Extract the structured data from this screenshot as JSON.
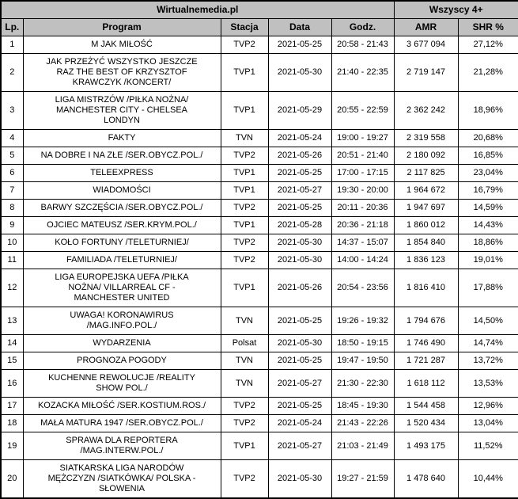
{
  "colors": {
    "header_bg": "#c0c0c0",
    "border": "#000000",
    "text": "#000000",
    "row_bg": "#ffffff"
  },
  "chart_data": {
    "type": "table",
    "title": "Wirtualnemedia.pl",
    "audience_group": "Wszyscy 4+",
    "columns": [
      "Lp.",
      "Program",
      "Stacja",
      "Data",
      "Godz.",
      "AMR",
      "SHR %"
    ],
    "rows": [
      [
        "1",
        "M JAK MIŁOŚĆ",
        "TVP2",
        "2021-05-25",
        "20:58 - 21:43",
        "3 677 094",
        "27,12%"
      ],
      [
        "2",
        "JAK PRZEŻYĆ WSZYSTKO JESZCZE\nRAZ THE BEST OF KRZYSZTOF\nKRAWCZYK /KONCERT/",
        "TVP1",
        "2021-05-30",
        "21:40 - 22:35",
        "2 719 147",
        "21,28%"
      ],
      [
        "3",
        "LIGA MISTRZÓW /PIŁKA NOŻNA/\nMANCHESTER CITY - CHELSEA\nLONDYN",
        "TVP1",
        "2021-05-29",
        "20:55 - 22:59",
        "2 362 242",
        "18,96%"
      ],
      [
        "4",
        "FAKTY",
        "TVN",
        "2021-05-24",
        "19:00 - 19:27",
        "2 319 558",
        "20,68%"
      ],
      [
        "5",
        "NA DOBRE I NA ZŁE /SER.OBYCZ.POL./",
        "TVP2",
        "2021-05-26",
        "20:51 - 21:40",
        "2 180 092",
        "16,85%"
      ],
      [
        "6",
        "TELEEXPRESS",
        "TVP1",
        "2021-05-25",
        "17:00 - 17:15",
        "2 117 825",
        "23,04%"
      ],
      [
        "7",
        "WIADOMOŚCI",
        "TVP1",
        "2021-05-27",
        "19:30 - 20:00",
        "1 964 672",
        "16,79%"
      ],
      [
        "8",
        "BARWY SZCZĘŚCIA /SER.OBYCZ.POL./",
        "TVP2",
        "2021-05-25",
        "20:11 - 20:36",
        "1 947 697",
        "14,59%"
      ],
      [
        "9",
        "OJCIEC MATEUSZ /SER.KRYM.POL./",
        "TVP1",
        "2021-05-28",
        "20:36 - 21:18",
        "1 860 012",
        "14,43%"
      ],
      [
        "10",
        "KOŁO FORTUNY /TELETURNIEJ/",
        "TVP2",
        "2021-05-30",
        "14:37 - 15:07",
        "1 854 840",
        "18,86%"
      ],
      [
        "11",
        "FAMILIADA /TELETURNIEJ/",
        "TVP2",
        "2021-05-30",
        "14:00 - 14:24",
        "1 836 123",
        "19,01%"
      ],
      [
        "12",
        "LIGA EUROPEJSKA UEFA /PIŁKA\nNOŻNA/ VILLARREAL CF -\nMANCHESTER UNITED",
        "TVP1",
        "2021-05-26",
        "20:54 - 23:56",
        "1 816 410",
        "17,88%"
      ],
      [
        "13",
        "UWAGA! KORONAWIRUS\n/MAG.INFO.POL./",
        "TVN",
        "2021-05-25",
        "19:26 - 19:32",
        "1 794 676",
        "14,50%"
      ],
      [
        "14",
        "WYDARZENIA",
        "Polsat",
        "2021-05-30",
        "18:50 - 19:15",
        "1 746 490",
        "14,74%"
      ],
      [
        "15",
        "PROGNOZA POGODY",
        "TVN",
        "2021-05-25",
        "19:47 - 19:50",
        "1 721 287",
        "13,72%"
      ],
      [
        "16",
        "KUCHENNE REWOLUCJE /REALITY\nSHOW POL./",
        "TVN",
        "2021-05-27",
        "21:30 - 22:30",
        "1 618 112",
        "13,53%"
      ],
      [
        "17",
        "KOZACKA MIŁOŚĆ /SER.KOSTIUM.ROS./",
        "TVP2",
        "2021-05-25",
        "18:45 - 19:30",
        "1 544 458",
        "12,96%"
      ],
      [
        "18",
        "MAŁA MATURA 1947 /SER.OBYCZ.POL./",
        "TVP2",
        "2021-05-24",
        "21:43 - 22:26",
        "1 520 434",
        "13,04%"
      ],
      [
        "19",
        "SPRAWA DLA REPORTERA\n/MAG.INTERW.POL./",
        "TVP1",
        "2021-05-27",
        "21:03 - 21:49",
        "1 493 175",
        "11,52%"
      ],
      [
        "20",
        "SIATKARSKA LIGA NARODÓW\nMĘŻCZYZN /SIATKÓWKA/ POLSKA -\nSŁOWENIA",
        "TVP2",
        "2021-05-30",
        "19:27 - 21:59",
        "1 478 640",
        "10,44%"
      ]
    ]
  }
}
